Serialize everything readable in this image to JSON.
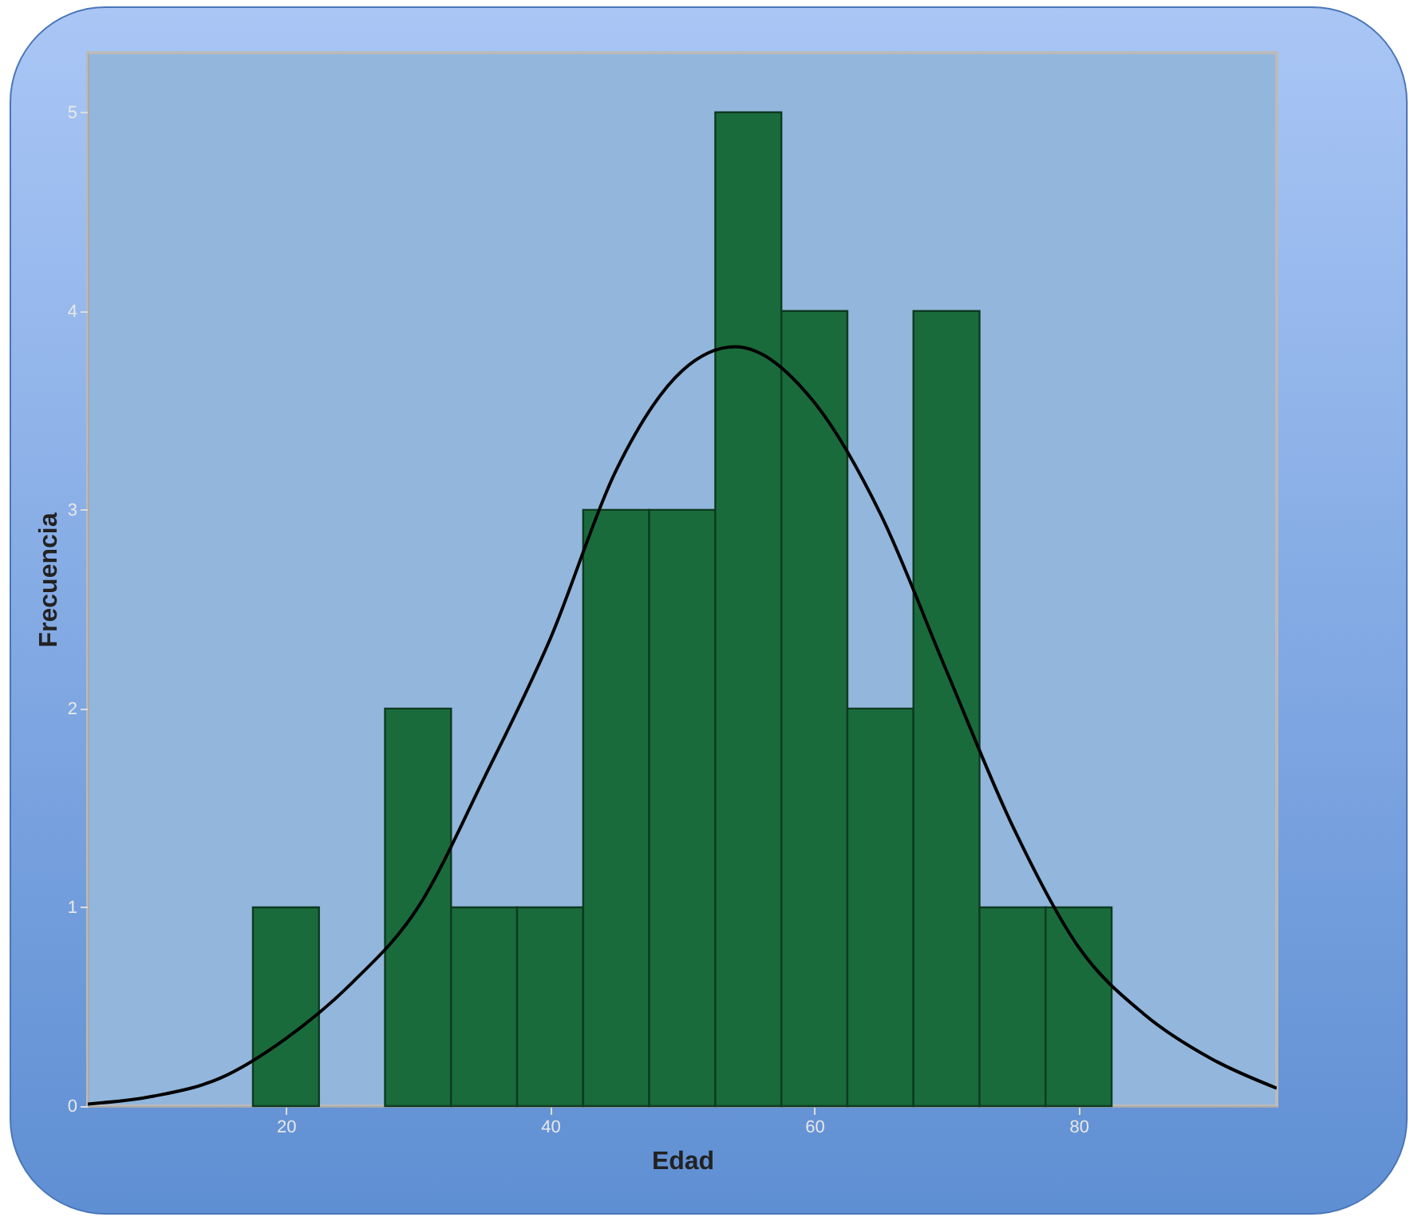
{
  "chart_data": {
    "type": "histogram",
    "xlabel": "Edad",
    "ylabel": "Frecuencia",
    "bins": [
      17.5,
      22.5,
      27.5,
      32.5,
      37.5,
      42.5,
      47.5,
      52.5,
      57.5,
      62.5,
      67.5,
      72.5,
      77.5,
      82.5
    ],
    "values": [
      1,
      0,
      2,
      1,
      1,
      3,
      3,
      5,
      4,
      2,
      4,
      1,
      1
    ],
    "color": "#1a6b3c",
    "xlim": [
      5,
      95
    ],
    "xticks": [
      20,
      40,
      60,
      80
    ],
    "ylim": [
      0,
      5.3
    ],
    "yticks": [
      0,
      1,
      2,
      3,
      4,
      5
    ],
    "grid": false,
    "series": [
      {
        "type": "line",
        "color": "#000000",
        "x": [
          5,
          10,
          15,
          20,
          25,
          30,
          35,
          40,
          45,
          50,
          54,
          60,
          65,
          70,
          75,
          80,
          85,
          90,
          95
        ],
        "values": [
          0.01,
          0.05,
          0.14,
          0.34,
          0.62,
          1.0,
          1.65,
          2.35,
          3.2,
          3.7,
          3.82,
          3.54,
          2.98,
          2.19,
          1.41,
          0.8,
          0.46,
          0.24,
          0.09
        ]
      }
    ]
  }
}
